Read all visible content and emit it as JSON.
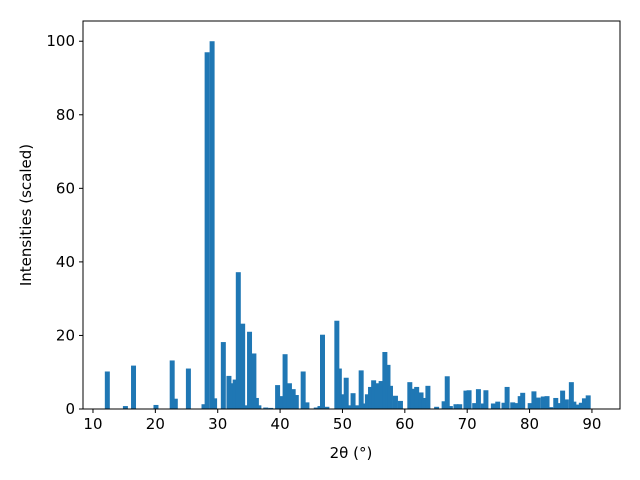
{
  "chart_data": {
    "type": "bar",
    "xlabel": "2θ (°)",
    "ylabel": "Intensities (scaled)",
    "color": "#1f77b4",
    "x": [
      12.3,
      15.2,
      16.5,
      20.1,
      22.7,
      23.2,
      25.3,
      27.8,
      28.3,
      29.1,
      29.5,
      30.9,
      31.8,
      32.3,
      32.8,
      33.3,
      34.0,
      34.6,
      35.1,
      35.8,
      36.2,
      36.6,
      37.7,
      38.5,
      39.6,
      40.1,
      40.8,
      41.5,
      42.1,
      42.6,
      43.7,
      44.3,
      45.8,
      46.4,
      46.8,
      47.5,
      49.1,
      49.5,
      50.2,
      50.6,
      51.3,
      51.7,
      52.4,
      53.0,
      53.5,
      54.0,
      54.5,
      55.0,
      55.5,
      56.2,
      56.8,
      57.3,
      57.7,
      58.5,
      59.3,
      60.8,
      61.3,
      61.9,
      62.6,
      63.1,
      63.7,
      65.1,
      66.3,
      66.8,
      67.3,
      68.2,
      68.8,
      69.8,
      70.3,
      71.2,
      71.8,
      72.6,
      73.0,
      74.2,
      74.9,
      75.9,
      76.4,
      77.3,
      77.9,
      78.5,
      78.9,
      80.1,
      80.7,
      81.4,
      82.2,
      82.8,
      83.4,
      84.2,
      84.8,
      85.3,
      85.9,
      86.7,
      87.1,
      87.7,
      88.3,
      88.8,
      89.4
    ],
    "values": [
      10.2,
      0.8,
      11.8,
      1.1,
      13.2,
      2.8,
      11,
      1.3,
      97,
      100,
      2.9,
      18.2,
      9,
      7,
      8,
      37.2,
      23.2,
      1,
      21,
      15.1,
      3,
      1,
      0.4,
      0.3,
      6.5,
      3.5,
      14.9,
      7,
      5.4,
      3.8,
      10.2,
      1.8,
      0.4,
      0.8,
      20.2,
      0.6,
      24,
      11,
      4,
      8.5,
      1,
      4.3,
      1,
      10.5,
      1.5,
      4,
      6,
      7.8,
      7,
      7.6,
      15.5,
      12,
      6.3,
      3.6,
      2.2,
      7.3,
      5.5,
      6,
      4.5,
      3,
      6.3,
      0.6,
      2.1,
      8.9,
      0.8,
      1.3,
      1.3,
      5,
      5.1,
      1.6,
      5.4,
      1.5,
      5.1,
      1.5,
      2,
      1.7,
      6,
      1.8,
      1.6,
      3.5,
      4.4,
      1.6,
      4.8,
      3.1,
      3.4,
      3.5,
      0.5,
      3,
      1.6,
      5,
      2.6,
      7.3,
      2,
      1.2,
      1.7,
      2.9,
      3.7
    ],
    "xlim": [
      8.4,
      94.5
    ],
    "ylim": [
      0,
      105.5
    ],
    "xticks": [
      10,
      20,
      30,
      40,
      50,
      60,
      70,
      80,
      90
    ],
    "yticks": [
      0,
      20,
      40,
      60,
      80,
      100
    ]
  }
}
